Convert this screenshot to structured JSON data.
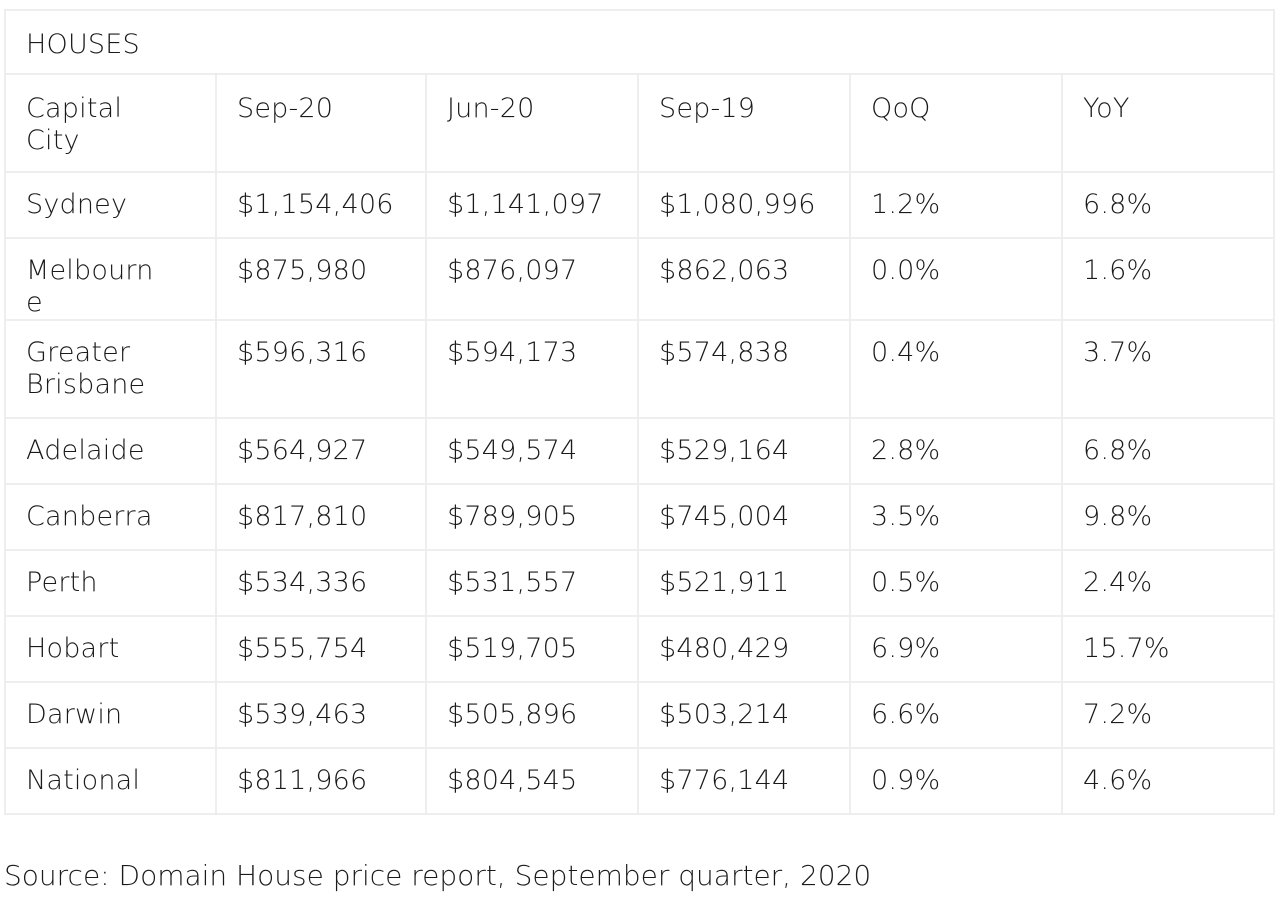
{
  "table": {
    "title": "HOUSES",
    "columns": [
      "Capital City",
      "Sep-20",
      "Jun-20",
      "Sep-19",
      "QoQ",
      "YoY"
    ],
    "rows": [
      [
        "Sydney",
        "$1,154,406",
        "$1,141,097",
        "$1,080,996",
        "1.2%",
        "6.8%"
      ],
      [
        "Melbourne",
        "$875,980",
        "$876,097",
        "$862,063",
        "0.0%",
        "1.6%"
      ],
      [
        "Greater Brisbane",
        "$596,316",
        "$594,173",
        "$574,838",
        "0.4%",
        "3.7%"
      ],
      [
        "Adelaide",
        "$564,927",
        "$549,574",
        "$529,164",
        "2.8%",
        "6.8%"
      ],
      [
        "Canberra",
        "$817,810",
        "$789,905",
        "$745,004",
        "3.5%",
        "9.8%"
      ],
      [
        "Perth",
        "$534,336",
        "$531,557",
        "$521,911",
        "0.5%",
        "2.4%"
      ],
      [
        "Hobart",
        "$555,754",
        "$519,705",
        "$480,429",
        "6.9%",
        "15.7%"
      ],
      [
        "Darwin",
        "$539,463",
        "$505,896",
        "$503,214",
        "6.6%",
        "7.2%"
      ],
      [
        "National",
        "$811,966",
        "$804,545",
        "$776,144",
        "0.9%",
        "4.6%"
      ]
    ]
  },
  "source": "Source: Domain House price report, September quarter, 2020"
}
